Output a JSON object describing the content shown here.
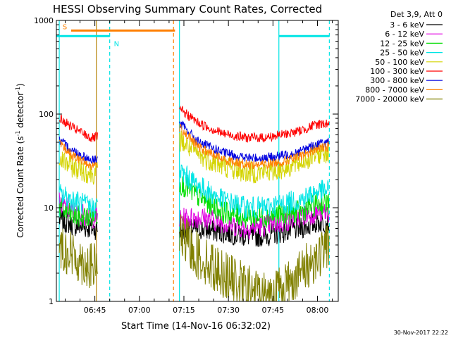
{
  "chart_data": {
    "type": "line",
    "title": "HESSI Observing Summary Count Rates, Corrected",
    "xlabel": "Start Time (14-Nov-16 06:32:02)",
    "ylabel_main": "Corrected Count Rate (s",
    "ylabel_sup1": "-1",
    "ylabel_mid": " detector",
    "ylabel_sup2": "-1",
    "ylabel_end": ")",
    "yscale": "log",
    "ylim": [
      1,
      1000
    ],
    "xlim": [
      "06:32:02",
      "08:07:00"
    ],
    "x_ticks": [
      "06:45",
      "07:00",
      "07:15",
      "07:30",
      "07:45",
      "08:00"
    ],
    "y_ticks": [
      "1",
      "10",
      "100",
      "1000"
    ],
    "legend_header": "Det 3,9, Att 0",
    "footer_date": "30-Nov-2017 22:22",
    "flags": [
      {
        "label": "S",
        "start": "06:37:00",
        "end": "07:12:00",
        "level": 780,
        "color": "#ff8000"
      },
      {
        "label": "N",
        "start": "06:32:02",
        "end": "06:50:00",
        "level": 680,
        "color": "#00e5e5"
      },
      {
        "label": "",
        "start": "07:47:00",
        "end": "08:04:00",
        "level": 680,
        "color": "#00e5e5"
      }
    ],
    "vlines": [
      {
        "time": "06:33:00",
        "style": "solid",
        "color": "#00e5e5"
      },
      {
        "time": "06:45:30",
        "style": "solid",
        "color": "#b8860b"
      },
      {
        "time": "06:50:00",
        "style": "dashed",
        "color": "#00e5e5"
      },
      {
        "time": "07:11:30",
        "style": "dashed",
        "color": "#ff8000"
      },
      {
        "time": "07:13:30",
        "style": "solid",
        "color": "#00e5e5"
      },
      {
        "time": "07:47:00",
        "style": "solid",
        "color": "#00e5e5"
      },
      {
        "time": "08:04:00",
        "style": "dashed",
        "color": "#00e5e5"
      }
    ],
    "gap": [
      "06:46:00",
      "07:13:30"
    ],
    "series": [
      {
        "name": "3 - 6 keV",
        "color": "#000000",
        "values": [
          7.5,
          6.5,
          6.0,
          5.5,
          6.0,
          5.5,
          5.0,
          5.0,
          5.5,
          6.0,
          7.0,
          7.0
        ]
      },
      {
        "name": "6 - 12 keV",
        "color": "#e000e0",
        "values": [
          11,
          9,
          8,
          7.5,
          8,
          7,
          6,
          6.5,
          7,
          8,
          9,
          9
        ]
      },
      {
        "name": "12 - 25 keV",
        "color": "#00dd00",
        "values": [
          10,
          8,
          8,
          18,
          13,
          9,
          8,
          8,
          8.5,
          9,
          11,
          11
        ]
      },
      {
        "name": "25 - 50 keV",
        "color": "#00e5e5",
        "values": [
          14,
          12,
          10,
          24,
          17,
          12,
          10,
          10,
          11,
          12,
          15,
          15
        ]
      },
      {
        "name": "50 - 100 keV",
        "color": "#d4d400",
        "values": [
          33,
          27,
          23,
          52,
          36,
          28,
          24,
          24,
          26,
          30,
          38,
          40
        ]
      },
      {
        "name": "100 - 300 keV",
        "color": "#ff0000",
        "values": [
          90,
          70,
          55,
          110,
          80,
          62,
          56,
          56,
          60,
          66,
          78,
          80
        ]
      },
      {
        "name": "300 - 800 keV",
        "color": "#0000e0",
        "values": [
          52,
          40,
          32,
          78,
          50,
          39,
          34,
          34,
          36,
          40,
          48,
          50
        ]
      },
      {
        "name": "800 - 7000 keV",
        "color": "#ff8000",
        "values": [
          48,
          35,
          28,
          70,
          44,
          33,
          29,
          29,
          31,
          35,
          43,
          45
        ]
      },
      {
        "name": "7000 - 20000 keV",
        "color": "#808000",
        "values": [
          4,
          3,
          2.3,
          5,
          3,
          2,
          1.4,
          1.2,
          1.4,
          2,
          3,
          4
        ]
      }
    ],
    "x_series": [
      "06:33",
      "06:38",
      "06:44",
      "07:14",
      "07:20",
      "07:28",
      "07:36",
      "07:42",
      "07:48",
      "07:54",
      "08:00",
      "08:04"
    ]
  }
}
